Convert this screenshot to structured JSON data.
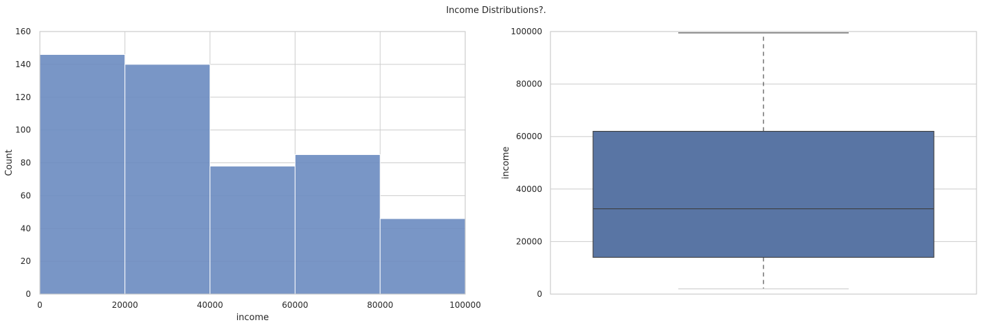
{
  "figure": {
    "suptitle": "Income Distributions?."
  },
  "colors": {
    "hist_fill": "#6a8bc0",
    "box_fill": "#5975a4",
    "edge": "#3d3d3d",
    "grid": "#cccccc",
    "spine": "#cccccc",
    "text": "#262626"
  },
  "chart_data": [
    {
      "type": "bar",
      "subtype": "histogram",
      "bins": [
        {
          "x0": 0,
          "x1": 20000,
          "count": 146
        },
        {
          "x0": 20000,
          "x1": 40000,
          "count": 140
        },
        {
          "x0": 40000,
          "x1": 60000,
          "count": 78
        },
        {
          "x0": 60000,
          "x1": 80000,
          "count": 85
        },
        {
          "x0": 80000,
          "x1": 100000,
          "count": 46
        }
      ],
      "xlabel": "income",
      "ylabel": "Count",
      "xlim": [
        0,
        100000
      ],
      "ylim": [
        0,
        160
      ],
      "xticks": [
        0,
        20000,
        40000,
        60000,
        80000,
        100000
      ],
      "xtick_labels": [
        "0",
        "20000",
        "40000",
        "60000",
        "80000",
        "100000"
      ],
      "yticks": [
        0,
        20,
        40,
        60,
        80,
        100,
        120,
        140,
        160
      ],
      "ytick_labels": [
        "0",
        "20",
        "40",
        "60",
        "80",
        "100",
        "120",
        "140",
        "160"
      ],
      "grid": true
    },
    {
      "type": "box",
      "ylabel": "income",
      "ylim": [
        0,
        100000
      ],
      "yticks": [
        0,
        20000,
        40000,
        60000,
        80000,
        100000
      ],
      "ytick_labels": [
        "0",
        "20000",
        "40000",
        "60000",
        "80000",
        "100000"
      ],
      "box": {
        "q1": 14000,
        "median": 32500,
        "q3": 62000,
        "whisker_low": 2000,
        "whisker_high": 99500
      },
      "grid": true
    }
  ]
}
